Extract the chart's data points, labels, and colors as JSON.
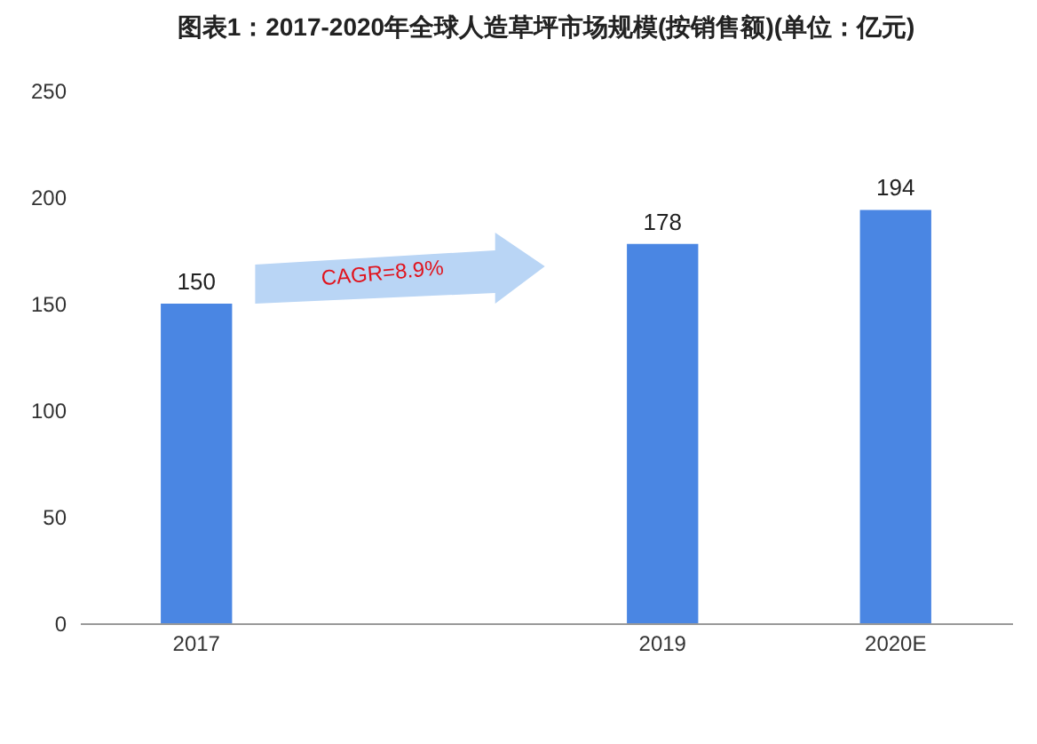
{
  "chart_data": {
    "type": "bar",
    "title": "图表1：2017-2020年全球人造草坪市场规模(按销售额)(单位：亿元)",
    "categories": [
      "2017",
      null,
      "2019",
      "2020E"
    ],
    "values": [
      150,
      null,
      178,
      194
    ],
    "color": "#4a86e3",
    "ylim": [
      0,
      250
    ],
    "yticks": [
      0,
      50,
      100,
      150,
      200,
      250
    ],
    "grid": false,
    "data_labels": true,
    "annotations": [
      "CAGR=8.9%"
    ]
  }
}
